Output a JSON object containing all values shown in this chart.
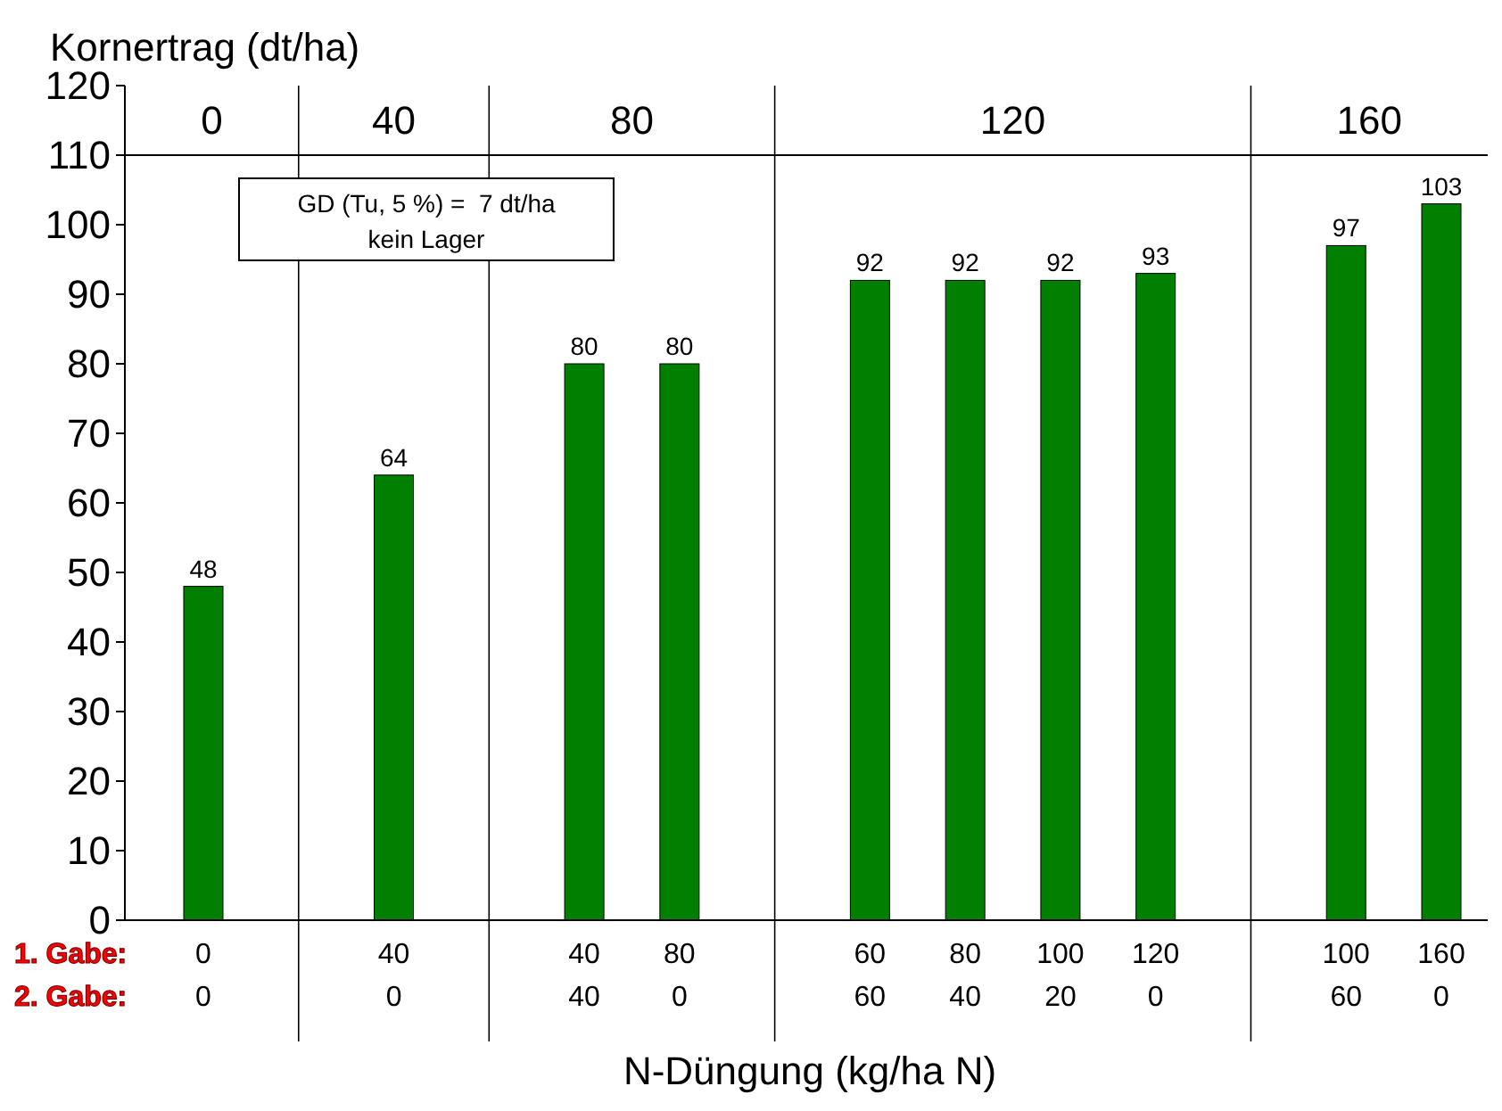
{
  "chart_data": {
    "type": "bar",
    "ylabel": "Kornertrag (dt/ha)",
    "xlabel": "N-Düngung (kg/ha N)",
    "categories": [
      "0\n0",
      "40\n0",
      "40\n40",
      "80\n0",
      "60\n60",
      "80\n40",
      "100\n20",
      "120\n0",
      "100\n60",
      "160\n0"
    ],
    "values": [
      48,
      64,
      80,
      80,
      92,
      92,
      92,
      93,
      97,
      103
    ],
    "color": "#007f00",
    "data_labels": true,
    "ylim": [
      0,
      120
    ],
    "yticks": [
      0,
      10,
      20,
      30,
      40,
      50,
      60,
      70,
      80,
      90,
      100,
      110,
      120
    ],
    "grid": false,
    "ref_lines": [
      {
        "axis": "y",
        "value": 110,
        "color": "#000000"
      }
    ],
    "annotations": [
      "GD (Tu, 5 %) =  7 dt/ha\nkein Lager",
      "1. Gabe:",
      "2. Gabe:",
      "0",
      "40",
      "80",
      "120",
      "160"
    ]
  }
}
